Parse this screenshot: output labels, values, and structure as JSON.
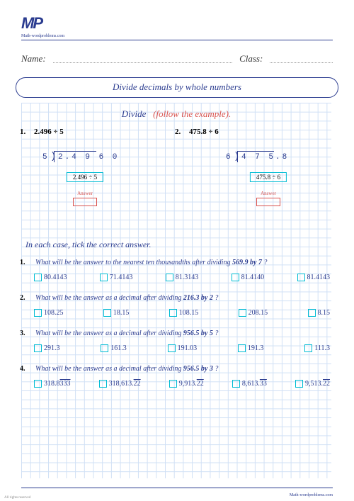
{
  "logo": {
    "mark": "MP",
    "sub": "Math-wordproblems.com"
  },
  "header": {
    "name_label": "Name:",
    "class_label": "Class:",
    "title": "Divide decimals by whole numbers"
  },
  "section1": {
    "title_blue": "Divide",
    "title_red": "(follow the example).",
    "problems": [
      {
        "num": "1.",
        "expr": "2.496 ÷ 5",
        "divisor": "5",
        "dividend": "2.4 9 6 0",
        "restate": "2.496 ÷ 5",
        "answer_label": "Answer"
      },
      {
        "num": "2.",
        "expr": "475.8 ÷ 6",
        "divisor": "6",
        "dividend": "4 7 5.8",
        "restate": "475.8 ÷ 6",
        "answer_label": "Answer"
      }
    ]
  },
  "section2": {
    "instr": "In each case, tick the correct answer.",
    "questions": [
      {
        "num": "1.",
        "text_a": "What will be the answer to the nearest ten thousandths after dividing ",
        "bold": "569.9 by 7",
        "text_b": " ?",
        "opts": [
          "80.4143",
          "71.4143",
          "81.3143",
          "81.4140",
          "81.4143"
        ]
      },
      {
        "num": "2.",
        "text_a": "What will be the answer as a decimal after dividing ",
        "bold": "216.3 by 2",
        "text_b": " ?",
        "opts": [
          "108.25",
          "18.15",
          "108.15",
          "208.15",
          "8.15"
        ]
      },
      {
        "num": "3.",
        "text_a": "What will be the answer as a decimal after dividing ",
        "bold": "956.5 by 5",
        "text_b": " ?",
        "opts": [
          "291.3",
          "161.3",
          "191.03",
          "191.3",
          "111.3"
        ]
      },
      {
        "num": "4.",
        "text_a": "What will be the answer as a decimal after dividing ",
        "bold": "956.5 by 3",
        "text_b": " ?",
        "opts_ov": [
          {
            "pre": "318.8",
            "ov": "333"
          },
          {
            "pre": "318,613.",
            "ov": "22"
          },
          {
            "pre": "9,913.",
            "ov": "22"
          },
          {
            "pre": "8,613.",
            "ov": "33"
          },
          {
            "pre": "9,513.",
            "ov": "22"
          }
        ]
      }
    ]
  },
  "footer": {
    "right": "Math-wordproblems.com",
    "left": "All rights reserved"
  },
  "style": {
    "colors": {
      "primary": "#2a3b8f",
      "accent_red": "#d9534f",
      "accent_cyan": "#00bcd4",
      "grid": "#d0e0f5",
      "bg": "#ffffff"
    },
    "mcq_tops": [
      220,
      270,
      320,
      370
    ]
  }
}
